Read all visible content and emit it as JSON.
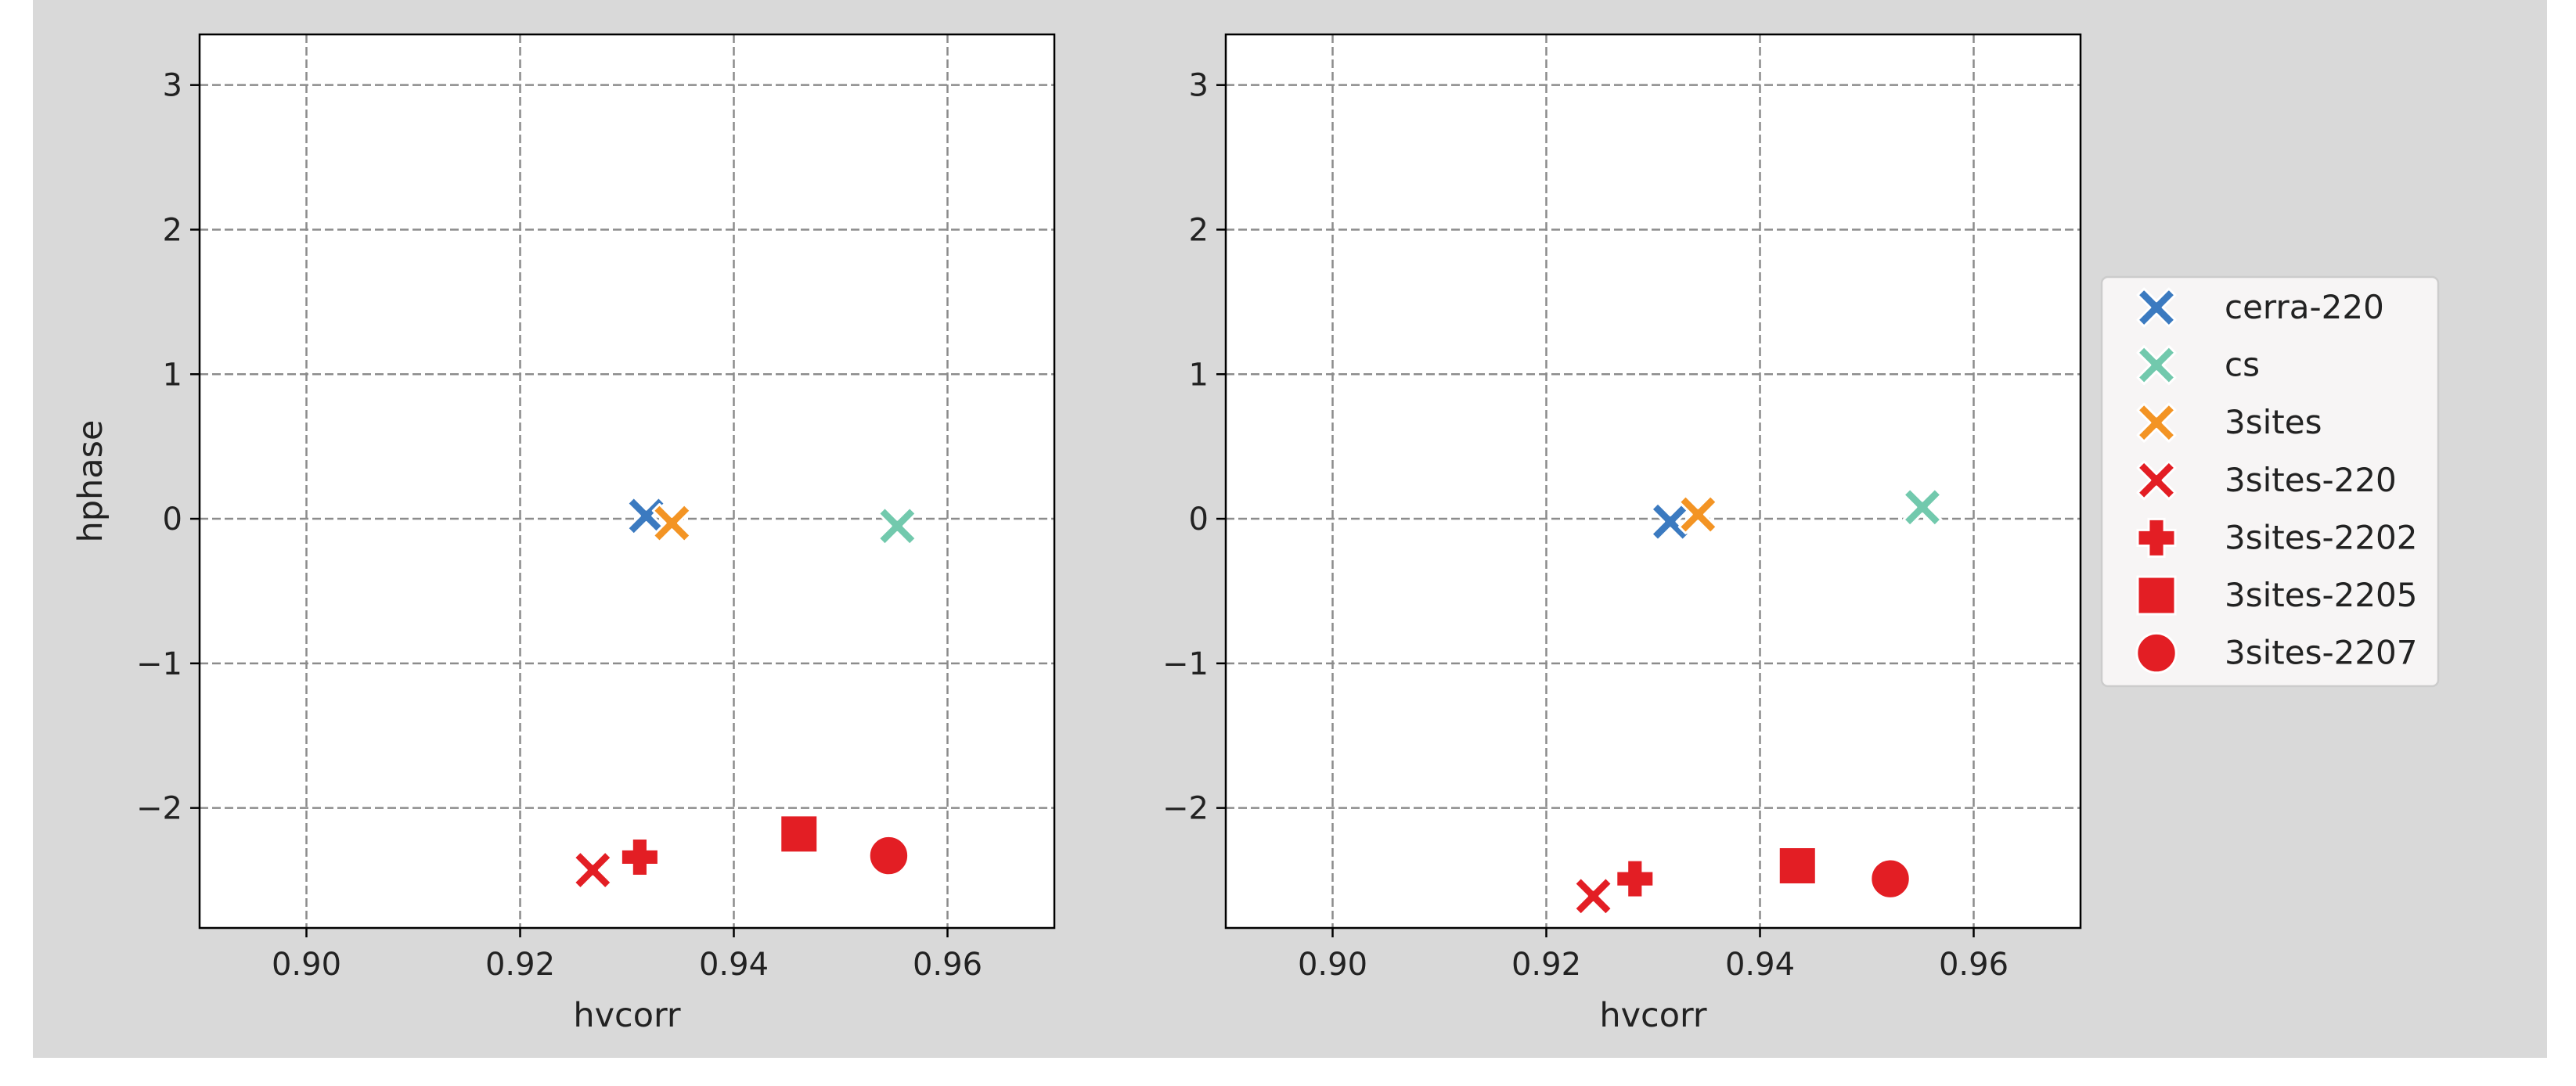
{
  "chart_data": [
    {
      "type": "scatter",
      "xlabel": "hvcorr",
      "ylabel": "hphase",
      "xlim": [
        0.89,
        0.97
      ],
      "ylim": [
        -2.83,
        3.35
      ],
      "xticks": [
        0.9,
        0.92,
        0.94,
        0.96
      ],
      "xtick_labels": [
        "0.90",
        "0.92",
        "0.94",
        "0.96"
      ],
      "yticks": [
        -2,
        -1,
        0,
        1,
        2,
        3
      ],
      "ytick_labels": [
        "−2",
        "−1",
        "0",
        "1",
        "2",
        "3"
      ],
      "grid": true,
      "series": [
        {
          "name": "cerra-220",
          "marker": "x",
          "color": "#3b7ac0",
          "x": 0.9318,
          "y": 0.02
        },
        {
          "name": "cs",
          "marker": "x",
          "color": "#72c9ad",
          "x": 0.9553,
          "y": -0.05
        },
        {
          "name": "3sites",
          "marker": "x",
          "color": "#f39424",
          "x": 0.9342,
          "y": -0.03
        },
        {
          "name": "3sites-220",
          "marker": "x",
          "color": "#e31e24",
          "x": 0.9268,
          "y": -2.43
        },
        {
          "name": "3sites-2202",
          "marker": "plus",
          "color": "#e31e24",
          "x": 0.9312,
          "y": -2.34
        },
        {
          "name": "3sites-2205",
          "marker": "square",
          "color": "#e31e24",
          "x": 0.9461,
          "y": -2.18
        },
        {
          "name": "3sites-2207",
          "marker": "circle",
          "color": "#e31e24",
          "x": 0.9545,
          "y": -2.33
        }
      ]
    },
    {
      "type": "scatter",
      "xlabel": "hvcorr",
      "ylabel": "",
      "xlim": [
        0.89,
        0.97
      ],
      "ylim": [
        -2.83,
        3.35
      ],
      "xticks": [
        0.9,
        0.92,
        0.94,
        0.96
      ],
      "xtick_labels": [
        "0.90",
        "0.92",
        "0.94",
        "0.96"
      ],
      "yticks": [
        -2,
        -1,
        0,
        1,
        2,
        3
      ],
      "ytick_labels": [
        "−2",
        "−1",
        "0",
        "1",
        "2",
        "3"
      ],
      "grid": true,
      "series": [
        {
          "name": "cerra-220",
          "marker": "x",
          "color": "#3b7ac0",
          "x": 0.9316,
          "y": -0.02
        },
        {
          "name": "cs",
          "marker": "x",
          "color": "#72c9ad",
          "x": 0.9552,
          "y": 0.08
        },
        {
          "name": "3sites",
          "marker": "x",
          "color": "#f39424",
          "x": 0.9342,
          "y": 0.03
        },
        {
          "name": "3sites-220",
          "marker": "x",
          "color": "#e31e24",
          "x": 0.9244,
          "y": -2.61
        },
        {
          "name": "3sites-2202",
          "marker": "plus",
          "color": "#e31e24",
          "x": 0.9283,
          "y": -2.49
        },
        {
          "name": "3sites-2205",
          "marker": "square",
          "color": "#e31e24",
          "x": 0.9435,
          "y": -2.4
        },
        {
          "name": "3sites-2207",
          "marker": "circle",
          "color": "#e31e24",
          "x": 0.9522,
          "y": -2.49
        }
      ]
    }
  ],
  "legend": {
    "placement": "right",
    "entries": [
      {
        "label": "cerra-220",
        "marker": "x",
        "color": "#3b7ac0"
      },
      {
        "label": "cs",
        "marker": "x",
        "color": "#72c9ad"
      },
      {
        "label": "3sites",
        "marker": "x",
        "color": "#f39424"
      },
      {
        "label": "3sites-220",
        "marker": "x",
        "color": "#e31e24"
      },
      {
        "label": "3sites-2202",
        "marker": "plus",
        "color": "#e31e24"
      },
      {
        "label": "3sites-2205",
        "marker": "square",
        "color": "#e31e24"
      },
      {
        "label": "3sites-2207",
        "marker": "circle",
        "color": "#e31e24"
      }
    ]
  },
  "colors": {
    "figure_background": "#d9d9d9",
    "axes_background": "#ffffff",
    "grid": "#8c8c8c",
    "legend_background": "#f7f5f5"
  }
}
